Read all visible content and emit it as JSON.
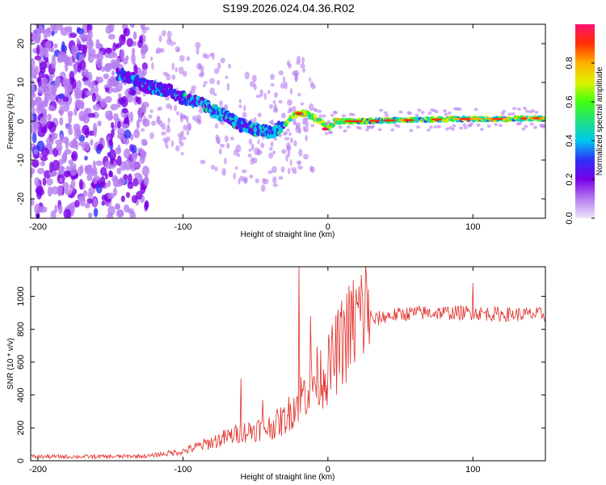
{
  "title": "S199.2026.024.04.36.R02",
  "chart_data": [
    {
      "type": "heatmap",
      "xlabel": "Height of straight line (km)",
      "ylabel": "Frequency (Hz)",
      "xlim": [
        -205,
        150
      ],
      "ylim": [
        -25,
        25
      ],
      "xticks": [
        -200,
        -100,
        0,
        100
      ],
      "yticks": [
        -20,
        -10,
        0,
        10,
        20
      ],
      "colorbar": {
        "label": "Normalized spectral amplitude",
        "range": [
          0,
          1
        ],
        "ticks": [
          "0.0",
          "0.2",
          "0.4",
          "0.6",
          "0.8"
        ],
        "colors": [
          "#f0e6fb",
          "#b57df0",
          "#7a00e6",
          "#2f2ff7",
          "#00c8f0",
          "#20e080",
          "#40ff10",
          "#e0f000",
          "#ffb000",
          "#ff3000",
          "#ff1070"
        ]
      },
      "ridge": {
        "x": [
          -140,
          -125,
          -110,
          -100,
          -90,
          -80,
          -70,
          -60,
          -50,
          -40,
          -30,
          -25,
          -20,
          -15,
          -10,
          -5,
          0,
          5,
          10,
          20,
          40,
          60,
          80,
          100,
          120,
          150
        ],
        "y": [
          12,
          9,
          8,
          6,
          5,
          3,
          1,
          -1,
          -2,
          -3,
          -1,
          1,
          2,
          2,
          1,
          0,
          -2,
          0,
          0,
          0,
          0.2,
          0.3,
          0.5,
          0.6,
          0.6,
          0.8
        ]
      }
    },
    {
      "type": "line",
      "xlabel": "Height of straight line (km)",
      "ylabel": "SNR (10 * v/v)",
      "xlim": [
        -205,
        150
      ],
      "ylim": [
        0,
        1180
      ],
      "xticks": [
        -200,
        -100,
        0,
        100
      ],
      "yticks": [
        0,
        200,
        400,
        600,
        800,
        1000
      ],
      "color": "#e0302a",
      "envelope": {
        "x": [
          -205,
          -150,
          -120,
          -100,
          -80,
          -60,
          -50,
          -40,
          -30,
          -20,
          -10,
          0,
          10,
          20,
          30,
          40,
          60,
          80,
          100,
          120,
          150
        ],
        "y": [
          25,
          25,
          30,
          50,
          100,
          150,
          170,
          180,
          220,
          330,
          430,
          480,
          640,
          760,
          850,
          880,
          900,
          900,
          900,
          890,
          890
        ]
      },
      "spikes": [
        {
          "x": -60,
          "y": 500
        },
        {
          "x": -45,
          "y": 370
        },
        {
          "x": -20,
          "y": 1180
        },
        {
          "x": -12,
          "y": 880
        },
        {
          "x": 100,
          "y": 1080
        }
      ]
    }
  ]
}
